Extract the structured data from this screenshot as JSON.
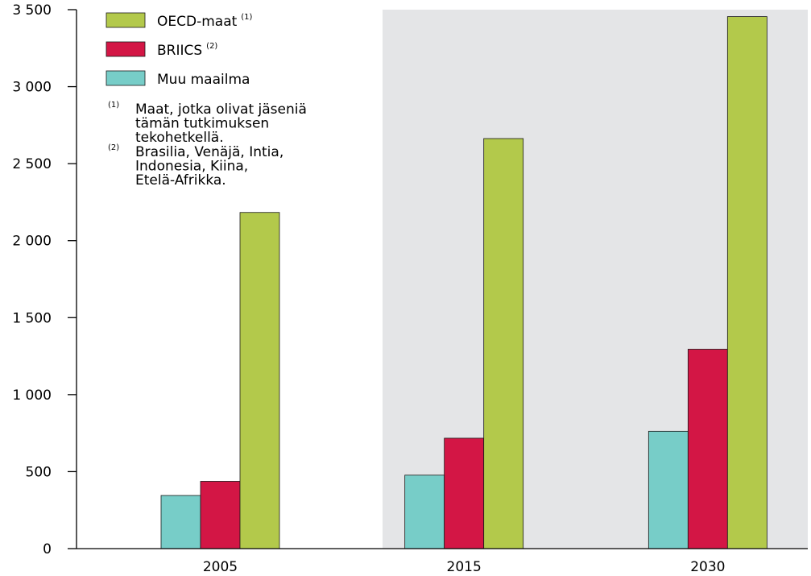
{
  "colors": {
    "muu": "#77cdc8",
    "briics": "#d31645",
    "oecd": "#b3c94b",
    "shade": "#e4e5e7",
    "axis": "#000000"
  },
  "chart_data": {
    "type": "bar",
    "categories": [
      "2005",
      "2015",
      "2030"
    ],
    "series": [
      {
        "name": "Muu maailma",
        "values": [
          345,
          477,
          762
        ]
      },
      {
        "name": "BRIICS",
        "values": [
          437,
          717,
          1295
        ]
      },
      {
        "name": "OECD-maat",
        "values": [
          2183,
          2663,
          3455
        ]
      }
    ],
    "y_ticks": [
      "0",
      "500",
      "1 000",
      "1 500",
      "2 000",
      "2 500",
      "3 000",
      "3 500"
    ],
    "y_tick_values": [
      0,
      500,
      1000,
      1500,
      2000,
      2500,
      3000,
      3500
    ],
    "ylim": [
      0,
      3500
    ],
    "grid": false,
    "legend_position": "top-left",
    "legend": [
      {
        "label": "OECD-maat",
        "sup": "(1)"
      },
      {
        "label": "BRIICS",
        "sup": "(2)"
      },
      {
        "label": "Muu maailma",
        "sup": ""
      }
    ],
    "notes": [
      {
        "mark": "(1)",
        "lines": [
          "Maat, jotka olivat jäseniä",
          "tämän tutkimuksen",
          "tekohetkellä."
        ]
      },
      {
        "mark": "(2)",
        "lines": [
          "Brasilia, Venäjä, Intia,",
          "Indonesia, Kiina,",
          "Etelä-Afrikka."
        ]
      }
    ]
  }
}
